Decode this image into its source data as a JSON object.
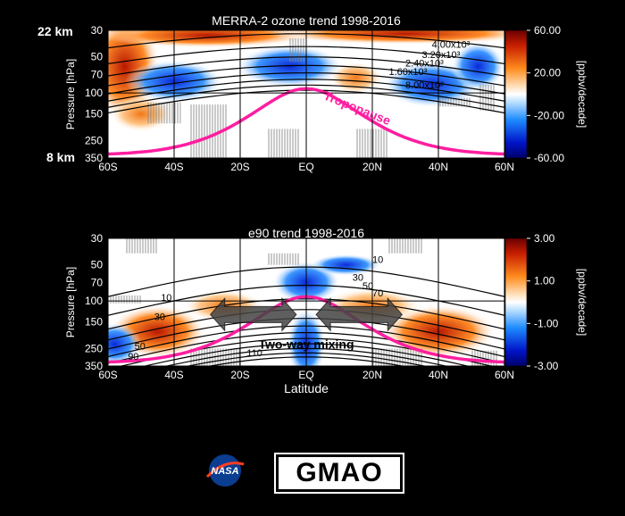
{
  "chart_data": [
    {
      "type": "heatmap",
      "title": "MERRA-2 ozone trend 1998-2016",
      "xlabel": "",
      "ylabel": "Pressure [hPa]",
      "colorbar_label": "[ppbv/decade]",
      "colorbar_ticks": [
        "60.00",
        "20.00",
        "-20.00",
        "-60.00"
      ],
      "colorbar_range": [
        -60,
        60
      ],
      "x_ticks": [
        "60S",
        "40S",
        "20S",
        "EQ",
        "20N",
        "40N",
        "60N"
      ],
      "x_values": [
        -60,
        -40,
        -20,
        0,
        20,
        40,
        60
      ],
      "y_ticks": [
        30,
        50,
        70,
        100,
        150,
        250,
        350
      ],
      "y_scale": "log",
      "ylim": [
        350,
        30
      ],
      "altitude_labels": {
        "top": "22 km",
        "bottom": "8 km"
      },
      "contour_labels": [
        "4.00x10³",
        "3.20x10³",
        "2.40x10³",
        "1.60x10³",
        "8.00x10²"
      ],
      "annotation": "Tropopause"
    },
    {
      "type": "heatmap",
      "title": "e90 trend 1998-2016",
      "xlabel": "Latitude",
      "ylabel": "Pressure [hPa]",
      "colorbar_label": "[ppbv/decade]",
      "colorbar_ticks": [
        "3.00",
        "1.00",
        "-1.00",
        "-3.00"
      ],
      "colorbar_range": [
        -3,
        3
      ],
      "x_ticks": [
        "60S",
        "40S",
        "20S",
        "EQ",
        "20N",
        "40N",
        "60N"
      ],
      "x_values": [
        -60,
        -40,
        -20,
        0,
        20,
        40,
        60
      ],
      "y_ticks": [
        30,
        50,
        70,
        100,
        150,
        250,
        350
      ],
      "y_scale": "log",
      "ylim": [
        350,
        30
      ],
      "contour_labels": [
        "10",
        "30",
        "50",
        "70",
        "10",
        "30",
        "50",
        "90",
        "110"
      ],
      "annotation": "Two-way mixing"
    }
  ],
  "logos": {
    "nasa": "NASA",
    "gmao": "GMAO"
  }
}
